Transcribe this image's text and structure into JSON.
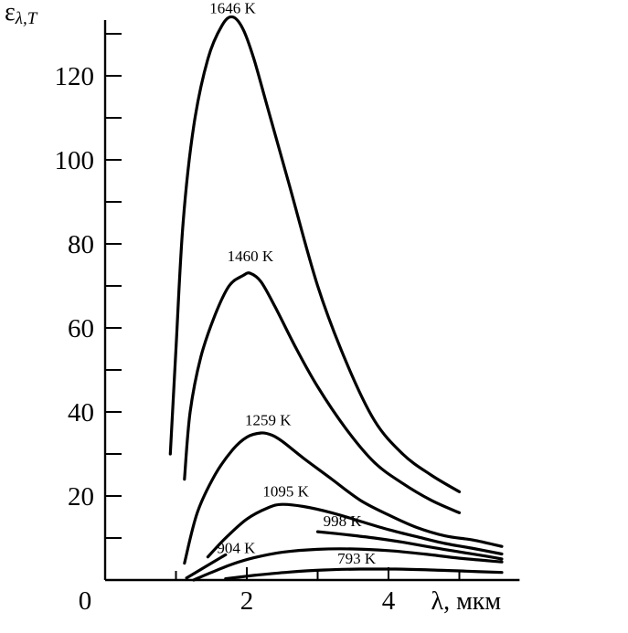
{
  "chart_data": {
    "type": "line",
    "ylabel_main": "ε",
    "ylabel_sub": "λ,T",
    "xlabel": "λ, мкм",
    "xlim": [
      0,
      5.6
    ],
    "ylim": [
      0,
      135
    ],
    "x_ticks": [
      {
        "value": 0,
        "label": "0"
      },
      {
        "value": 2,
        "label": "2"
      },
      {
        "value": 4,
        "label": "4"
      }
    ],
    "y_major_ticks": [
      {
        "value": 20,
        "label": "20"
      },
      {
        "value": 40,
        "label": "40"
      },
      {
        "value": 60,
        "label": "60"
      },
      {
        "value": 80,
        "label": "80"
      },
      {
        "value": 100,
        "label": "100"
      },
      {
        "value": 120,
        "label": "120"
      }
    ],
    "y_minor_ticks": [
      10,
      30,
      50,
      70,
      90,
      110,
      130
    ],
    "series": [
      {
        "name": "1646 K",
        "label_at": [
          1.8,
          134
        ],
        "x": [
          0.92,
          1.0,
          1.1,
          1.25,
          1.45,
          1.65,
          1.8,
          1.95,
          2.1,
          2.3,
          2.6,
          3.0,
          3.4,
          3.8,
          4.2,
          4.6,
          5.0
        ],
        "y": [
          30,
          55,
          85,
          108,
          124,
          132,
          134,
          131,
          124,
          112,
          94,
          70,
          52,
          38,
          30,
          25,
          21
        ]
      },
      {
        "name": "1460 K",
        "label_at": [
          2.05,
          75
        ],
        "x": [
          1.12,
          1.2,
          1.35,
          1.55,
          1.75,
          1.95,
          2.05,
          2.2,
          2.4,
          2.7,
          3.0,
          3.4,
          3.8,
          4.2,
          4.6,
          5.0
        ],
        "y": [
          24,
          40,
          53,
          63,
          70,
          72.5,
          73,
          71,
          65,
          55,
          46,
          36,
          28,
          23,
          19,
          16
        ]
      },
      {
        "name": "1259 K",
        "label_at": [
          2.3,
          36
        ],
        "x": [
          1.12,
          1.3,
          1.55,
          1.8,
          2.0,
          2.2,
          2.35,
          2.5,
          2.8,
          3.2,
          3.6,
          4.0,
          4.4,
          4.8,
          5.2,
          5.6
        ],
        "y": [
          4,
          16,
          25,
          31,
          34,
          35,
          34.5,
          33,
          29,
          24,
          19,
          15.5,
          12.5,
          10.5,
          9.5,
          8
        ]
      },
      {
        "name": "1095 K",
        "label_at": [
          2.55,
          19
        ],
        "x": [
          1.45,
          1.7,
          2.0,
          2.3,
          2.5,
          2.8,
          3.2,
          3.6,
          4.0,
          4.4,
          4.8,
          5.2,
          5.6
        ],
        "y": [
          5.5,
          10,
          14.5,
          17.2,
          18,
          17.5,
          16,
          14,
          12,
          10.3,
          8.7,
          7.5,
          6.2
        ]
      },
      {
        "name": "998 K",
        "label_at": [
          3.35,
          12
        ],
        "x": [
          3.0,
          3.4,
          3.8,
          4.2,
          4.6,
          5.0,
          5.4,
          5.6
        ],
        "y": [
          11.5,
          10.8,
          10,
          9,
          7.8,
          6.7,
          5.6,
          5
        ]
      },
      {
        "name": "998 K (left)",
        "x": [
          1.15,
          1.35,
          1.55,
          1.7
        ],
        "y": [
          0.5,
          2.5,
          4.5,
          6
        ]
      },
      {
        "name": "904 K",
        "label_at": [
          1.85,
          5.5
        ],
        "x": [
          1.25,
          1.5,
          1.8,
          2.1,
          2.5,
          3.0,
          3.5,
          4.0,
          4.5,
          5.0,
          5.6
        ],
        "y": [
          0,
          1.8,
          3.8,
          5.3,
          6.6,
          7.3,
          7.4,
          7,
          6.2,
          5.2,
          4.3
        ]
      },
      {
        "name": "793 K",
        "label_at": [
          3.55,
          3
        ],
        "x": [
          1.7,
          2.1,
          2.6,
          3.1,
          3.6,
          4.1,
          4.6,
          5.1,
          5.6
        ],
        "y": [
          0.3,
          1.1,
          1.9,
          2.4,
          2.6,
          2.6,
          2.4,
          2.1,
          1.8
        ]
      }
    ]
  }
}
